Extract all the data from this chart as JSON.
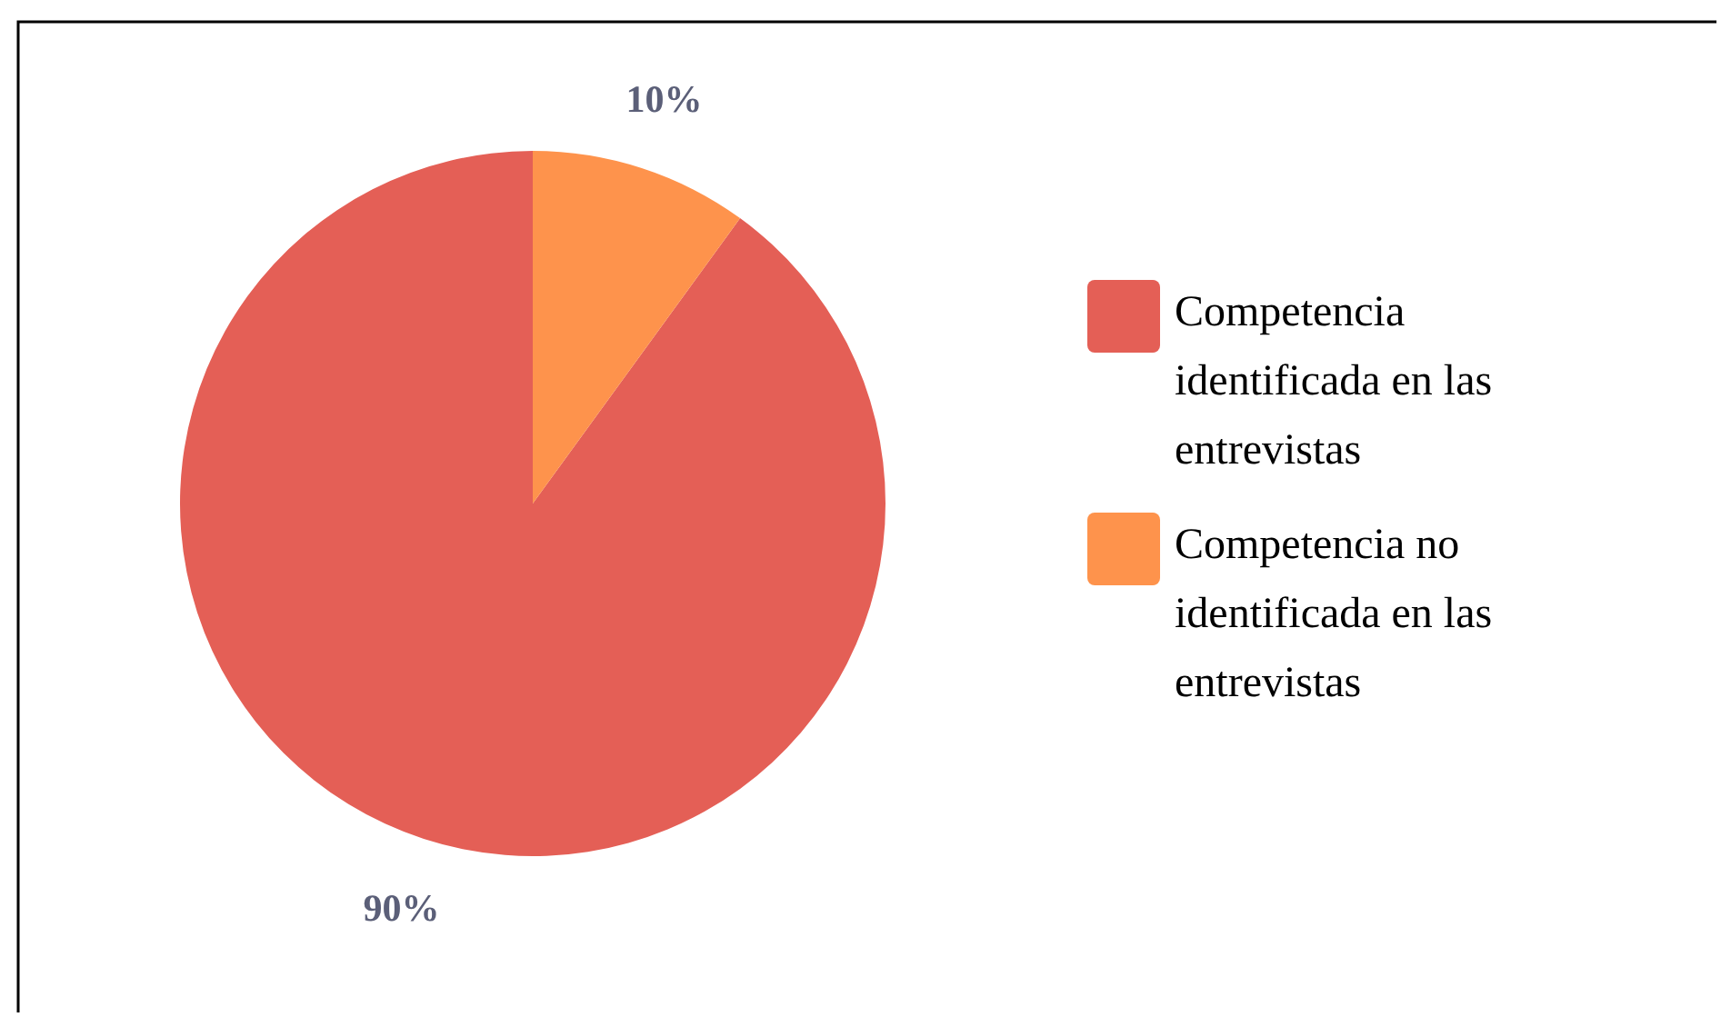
{
  "chart_data": {
    "type": "pie",
    "categories": [
      "Competencia identificada en las entrevistas",
      "Competencia no identificada en las entrevistas"
    ],
    "values": [
      90,
      10
    ],
    "colors": [
      "#e45f56",
      "#fe934c"
    ],
    "value_labels": [
      "90%",
      "10%"
    ],
    "legend": "right"
  }
}
